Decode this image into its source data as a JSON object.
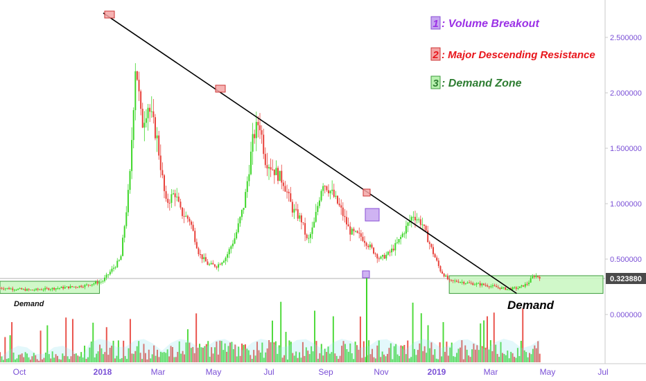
{
  "chart_data": {
    "type": "candlestick",
    "y_axis": {
      "ticks": [
        "2.500000",
        "2.000000",
        "1.500000",
        "1.000000",
        "0.500000",
        "0.000000"
      ],
      "tick_values": [
        2.5,
        2.0,
        1.5,
        1.0,
        0.5,
        0.0
      ],
      "current_price_label": "0.323880",
      "current_price": 0.32388
    },
    "x_axis": {
      "ticks": [
        {
          "label": "Oct",
          "bold": false
        },
        {
          "label": "2018",
          "bold": true
        },
        {
          "label": "Mar",
          "bold": false
        },
        {
          "label": "May",
          "bold": false
        },
        {
          "label": "Jul",
          "bold": false
        },
        {
          "label": "Sep",
          "bold": false
        },
        {
          "label": "Nov",
          "bold": false
        },
        {
          "label": "2019",
          "bold": true
        },
        {
          "label": "Mar",
          "bold": false
        },
        {
          "label": "May",
          "bold": false
        },
        {
          "label": "Jul",
          "bold": false
        }
      ]
    },
    "price_path": [
      [
        0.0,
        0.24
      ],
      [
        0.05,
        0.22
      ],
      [
        0.1,
        0.24
      ],
      [
        0.14,
        0.26
      ],
      [
        0.17,
        0.3
      ],
      [
        0.2,
        0.5
      ],
      [
        0.215,
        1.2
      ],
      [
        0.225,
        2.3
      ],
      [
        0.235,
        1.7
      ],
      [
        0.245,
        1.9
      ],
      [
        0.26,
        1.6
      ],
      [
        0.275,
        1.0
      ],
      [
        0.29,
        1.1
      ],
      [
        0.3,
        0.92
      ],
      [
        0.315,
        0.85
      ],
      [
        0.33,
        0.55
      ],
      [
        0.345,
        0.45
      ],
      [
        0.36,
        0.44
      ],
      [
        0.375,
        0.52
      ],
      [
        0.39,
        0.7
      ],
      [
        0.405,
        1.0
      ],
      [
        0.42,
        1.6
      ],
      [
        0.43,
        1.75
      ],
      [
        0.44,
        1.4
      ],
      [
        0.455,
        1.3
      ],
      [
        0.47,
        1.2
      ],
      [
        0.485,
        0.95
      ],
      [
        0.5,
        0.85
      ],
      [
        0.51,
        0.65
      ],
      [
        0.52,
        0.8
      ],
      [
        0.535,
        1.2
      ],
      [
        0.55,
        1.1
      ],
      [
        0.565,
        0.95
      ],
      [
        0.58,
        0.75
      ],
      [
        0.6,
        0.7
      ],
      [
        0.615,
        0.6
      ],
      [
        0.63,
        0.5
      ],
      [
        0.645,
        0.55
      ],
      [
        0.66,
        0.65
      ],
      [
        0.675,
        0.8
      ],
      [
        0.685,
        0.9
      ],
      [
        0.7,
        0.82
      ],
      [
        0.715,
        0.6
      ],
      [
        0.73,
        0.4
      ],
      [
        0.745,
        0.3
      ],
      [
        0.76,
        0.3
      ],
      [
        0.78,
        0.28
      ],
      [
        0.8,
        0.27
      ],
      [
        0.82,
        0.25
      ],
      [
        0.84,
        0.23
      ],
      [
        0.86,
        0.24
      ],
      [
        0.875,
        0.28
      ],
      [
        0.885,
        0.35
      ],
      [
        0.895,
        0.34
      ]
    ],
    "trendline": {
      "from": [
        0.2,
        2.72
      ],
      "to": [
        0.92,
        0.19
      ]
    },
    "demand_zones": [
      {
        "x0": 0.0,
        "x1": 0.165,
        "y0": 0.3,
        "y1": 0.19,
        "label": "Demand"
      },
      {
        "x0": 0.745,
        "x1": 1.0,
        "y0": 0.35,
        "y1": 0.19,
        "label": "Demand"
      }
    ],
    "markers": [
      {
        "kind": "resistance",
        "at": [
          0.205,
          2.72
        ]
      },
      {
        "kind": "resistance",
        "at": [
          0.41,
          2.05
        ]
      },
      {
        "kind": "resistance",
        "at": [
          0.68,
          1.1
        ]
      },
      {
        "kind": "volume",
        "at": [
          0.69,
          0.88
        ]
      },
      {
        "kind": "volume_small",
        "at": [
          0.68,
          0.335
        ]
      }
    ],
    "legend": {
      "items": [
        {
          "num": "1",
          "text": ": Volume Breakout",
          "fill": "#c7a6f0",
          "stroke": "#8a4fd6",
          "color": "#9b30e6"
        },
        {
          "num": "2",
          "text": ": Major Descending Resistance",
          "fill": "#f4a6a6",
          "stroke": "#cc3333",
          "color": "#e8151b"
        },
        {
          "num": "3",
          "text": ": Demand Zone",
          "fill": "#b9f2b0",
          "stroke": "#3a9a3a",
          "color": "#2e7d32"
        }
      ]
    },
    "colors": {
      "up": "#3dd628",
      "down": "#e8413a",
      "axis_text": "#7a4fd6",
      "trendline": "#000000",
      "zone_fill": "#c8f7c0",
      "zone_stroke": "#3a9a3a"
    }
  }
}
